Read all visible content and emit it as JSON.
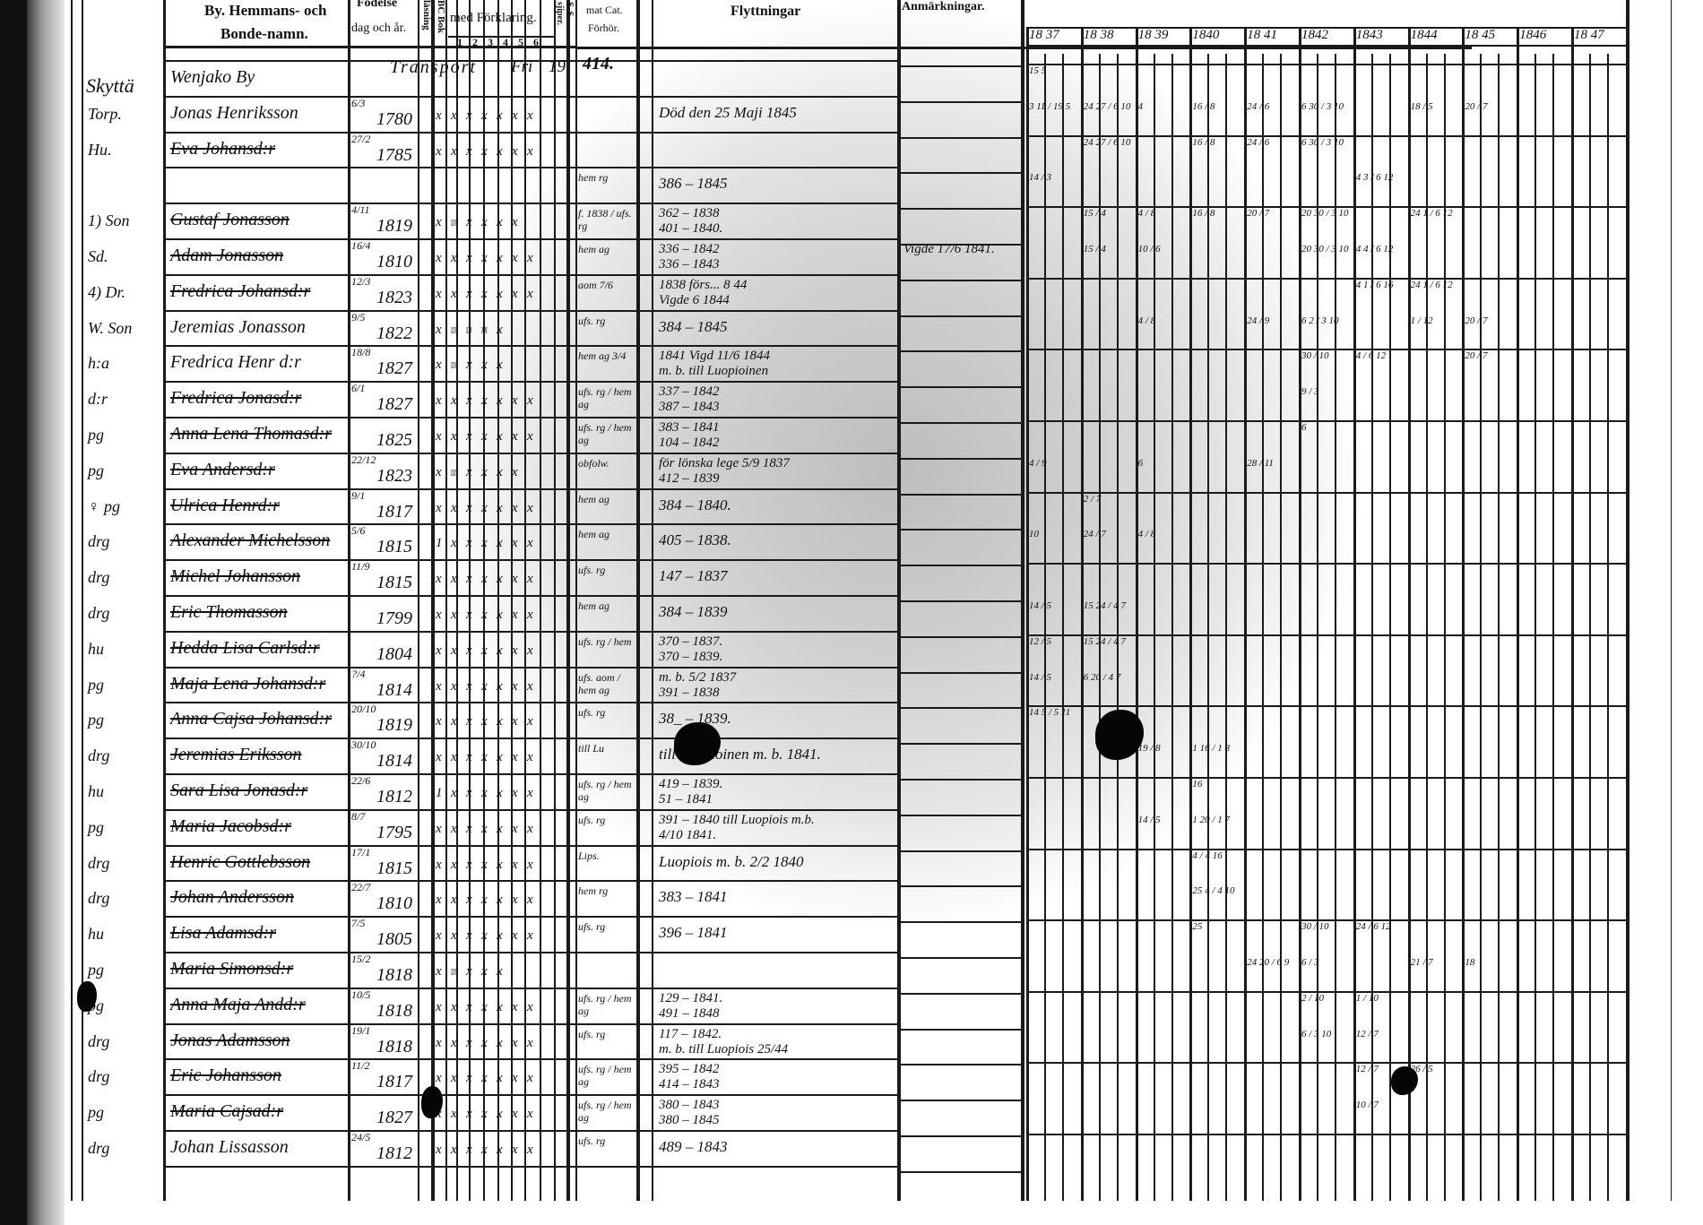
{
  "header": {
    "name_col": [
      "By. Hemmans- och",
      "Bonde-namn."
    ],
    "birth_col": [
      "Födelse",
      "dag och år."
    ],
    "abc_col": [
      "BC Bok",
      "läsning"
    ],
    "catechism_col": "med Förklaring.",
    "catechism_parts": [
      "1",
      "2",
      "3",
      "4",
      "5",
      "6"
    ],
    "ss_col": [
      "S. S.",
      "sjiper."
    ],
    "cat_col": [
      "mat Cat.",
      "Förhör."
    ],
    "moves_col": "Flyttningar",
    "remarks_col": "Anmärkningar.",
    "years": [
      "18 37",
      "18 38",
      "18 39",
      "1840",
      "18 41",
      "1842",
      "1843",
      "1844",
      "18 45",
      "1846",
      "18 47"
    ]
  },
  "transport": {
    "label": "Transport",
    "col_a": "Fri",
    "col_b": "19",
    "total": "414."
  },
  "margin_note": "Skyttä",
  "rows": [
    {
      "role": "",
      "name": "Wenjako By",
      "struck": false,
      "day": "",
      "year": "",
      "marks": "",
      "cat": "",
      "notes": [],
      "remarks": "",
      "ym": [
        {
          "y": 1837,
          "t": "15 5"
        }
      ]
    },
    {
      "role": "Torp.",
      "name": "Jonas Henriksson",
      "struck": false,
      "day": "6/3",
      "year": "1780",
      "marks": "x x x x x x x",
      "cat": "",
      "notes": [
        "Död den 25 Maji 1845"
      ],
      "remarks": "",
      "ym": [
        {
          "y": 1837,
          "t": "3 11 / 19 5"
        },
        {
          "y": 1838,
          "t": "24 27 / 6 10"
        },
        {
          "y": 1839,
          "t": "4"
        },
        {
          "y": 1840,
          "t": "16 / 8"
        },
        {
          "y": 1841,
          "t": "24 / 6"
        },
        {
          "y": 1842,
          "t": "6 30 / 3 10"
        },
        {
          "y": 1844,
          "t": "18 / 5"
        },
        {
          "y": 1845,
          "t": "20 / 7"
        }
      ]
    },
    {
      "role": "Hu.",
      "name": "Eva Johansd:r",
      "struck": true,
      "day": "27/2",
      "year": "1785",
      "marks": "x x x x x x x",
      "cat": "",
      "notes": [],
      "remarks": "",
      "ym": [
        {
          "y": 1838,
          "t": "24 27 / 6 10"
        },
        {
          "y": 1840,
          "t": "16 / 8"
        },
        {
          "y": 1841,
          "t": "24 / 6"
        },
        {
          "y": 1842,
          "t": "6 30 / 3 10"
        }
      ]
    },
    {
      "role": "",
      "name": "",
      "struck": false,
      "day": "",
      "year": "",
      "marks": "",
      "cat": "hem rg",
      "notes": [
        "386 – 1845"
      ],
      "remarks": "",
      "ym": [
        {
          "y": 1837,
          "t": "14 / 3"
        },
        {
          "y": 1843,
          "t": "4 3 / 6 12"
        }
      ]
    },
    {
      "role": "1) Son",
      "name": "Gustaf Jonasson",
      "struck": true,
      "day": "4/11",
      "year": "1819",
      "marks": "x xxxx x x x x",
      "cat": "f. 1838 / ufs. rg",
      "notes": [
        "362 – 1838",
        "401 – 1840."
      ],
      "remarks": "",
      "ym": [
        {
          "y": 1838,
          "t": "15 / 4"
        },
        {
          "y": 1839,
          "t": "4 / 8"
        },
        {
          "y": 1840,
          "t": "16 / 8"
        },
        {
          "y": 1841,
          "t": "20 / 7"
        },
        {
          "y": 1842,
          "t": "20 30 / 3 10"
        },
        {
          "y": 1844,
          "t": "24 1 / 6 12"
        }
      ]
    },
    {
      "role": "Sd.",
      "name": "Adam Jonasson",
      "struck": true,
      "day": "16/4",
      "year": "1810",
      "marks": "x x x x x x x",
      "cat": "hem ag",
      "notes": [
        "336 – 1842",
        "336 – 1843"
      ],
      "remarks": "Vigde 17/6 1841.",
      "ym": [
        {
          "y": 1838,
          "t": "15 / 4"
        },
        {
          "y": 1839,
          "t": "10 / 6"
        },
        {
          "y": 1842,
          "t": "20 30 / 3 10"
        },
        {
          "y": 1843,
          "t": "4 4 / 6 12"
        }
      ]
    },
    {
      "role": "4) Dr.",
      "name": "Fredrica Johansd:r",
      "struck": true,
      "day": "12/3",
      "year": "1823",
      "marks": "x x x x x x x",
      "cat": "aom 7/6",
      "notes": [
        "1838 förs... 8 44",
        "Vigde 6 1844"
      ],
      "remarks": "",
      "ym": [
        {
          "y": 1843,
          "t": "4 1 / 6 16"
        },
        {
          "y": 1844,
          "t": "24 1 / 6 12"
        }
      ]
    },
    {
      "role": "W. Son",
      "name": "Jeremias Jonasson",
      "struck": false,
      "day": "9/5",
      "year": "1822",
      "marks": "x xxxx xxx xx x",
      "cat": "ufs. rg",
      "notes": [
        "384 – 1845"
      ],
      "remarks": "",
      "ym": [
        {
          "y": 1839,
          "t": "4 / 8"
        },
        {
          "y": 1841,
          "t": "24 / 9"
        },
        {
          "y": 1842,
          "t": "6 2 / 3 10"
        },
        {
          "y": 1844,
          "t": "1 / 12"
        },
        {
          "y": 1845,
          "t": "20 / 7"
        }
      ]
    },
    {
      "role": "h:a",
      "name": "Fredrica Henr d:r",
      "struck": false,
      "day": "18/8",
      "year": "1827",
      "marks": "x xxxx x x x",
      "cat": "hem ag 3/4",
      "notes": [
        "1841 Vigd 11/6 1844",
        "m. b. till Luopioinen"
      ],
      "remarks": "",
      "ym": [
        {
          "y": 1842,
          "t": "30 / 10"
        },
        {
          "y": 1843,
          "t": "4 / 6 12"
        },
        {
          "y": 1845,
          "t": "20 / 7"
        }
      ]
    },
    {
      "role": "d:r",
      "name": "Fredrica Jonasd:r",
      "struck": true,
      "day": "6/1",
      "year": "1827",
      "marks": "x x x x x x x",
      "cat": "ufs. rg / hem ag",
      "notes": [
        "337 – 1842",
        "387 – 1843"
      ],
      "remarks": "",
      "ym": [
        {
          "y": 1842,
          "t": "9 / 3"
        }
      ]
    },
    {
      "role": "pg",
      "name": "Anna Lena Thomasd:r",
      "struck": true,
      "day": "",
      "year": "1825",
      "marks": "x x x x x x x",
      "cat": "ufs. rg / hem ag",
      "notes": [
        "383 – 1841",
        "104 – 1842"
      ],
      "remarks": "",
      "ym": [
        {
          "y": 1842,
          "t": "6"
        }
      ]
    },
    {
      "role": "pg",
      "name": "Eva Andersd:r",
      "struck": true,
      "day": "22/12",
      "year": "1823",
      "marks": "x xxxxx x x x x",
      "cat": "obfolw.",
      "notes": [
        "för lönska lege 5/9 1837",
        "412 – 1839"
      ],
      "remarks": "",
      "ym": [
        {
          "y": 1837,
          "t": "4 / 9"
        },
        {
          "y": 1839,
          "t": "6"
        },
        {
          "y": 1841,
          "t": "28 / 11"
        }
      ]
    },
    {
      "role": "♀ pg",
      "name": "Ulrica Henrd:r",
      "struck": true,
      "day": "9/1",
      "year": "1817",
      "marks": "x x x x x x x",
      "cat": "hem ag",
      "notes": [
        "384 – 1840."
      ],
      "remarks": "",
      "ym": [
        {
          "y": 1838,
          "t": "2 / 7"
        }
      ]
    },
    {
      "role": "drg",
      "name": "Alexander Michelsson",
      "struck": true,
      "day": "5/6",
      "year": "1815",
      "marks": "1 x x x x x x",
      "cat": "hem ag",
      "notes": [
        "405 – 1838."
      ],
      "remarks": "",
      "ym": [
        {
          "y": 1837,
          "t": "10"
        },
        {
          "y": 1838,
          "t": "24 / 7"
        },
        {
          "y": 1839,
          "t": "4 / 8"
        }
      ]
    },
    {
      "role": "drg",
      "name": "Michel Johansson",
      "struck": true,
      "day": "11/9",
      "year": "1815",
      "marks": "x x x x x x x",
      "cat": "ufs. rg",
      "notes": [
        "147 – 1837"
      ],
      "remarks": "",
      "ym": []
    },
    {
      "role": "drg",
      "name": "Eric Thomasson",
      "struck": true,
      "day": "",
      "year": "1799",
      "marks": "x x x x x x x",
      "cat": "hem ag",
      "notes": [
        "384 – 1839"
      ],
      "remarks": "",
      "ym": [
        {
          "y": 1837,
          "t": "14 / 5"
        },
        {
          "y": 1838,
          "t": "15 24 / 4 7"
        }
      ]
    },
    {
      "role": "hu",
      "name": "Hedda Lisa Carlsd:r",
      "struck": true,
      "day": "",
      "year": "1804",
      "marks": "x x x x x x x",
      "cat": "ufs. rg / hem",
      "notes": [
        "370 – 1837.",
        "370 – 1839."
      ],
      "remarks": "",
      "ym": [
        {
          "y": 1837,
          "t": "12 / 5"
        },
        {
          "y": 1838,
          "t": "15 24 / 4 7"
        }
      ]
    },
    {
      "role": "pg",
      "name": "Maja Lena Johansd:r",
      "struck": true,
      "day": "?/4",
      "year": "1814",
      "marks": "x x x x x x x",
      "cat": "ufs. aom / hem ag",
      "notes": [
        "m. b. 5/2 1837",
        "391 – 1838"
      ],
      "remarks": "",
      "ym": [
        {
          "y": 1837,
          "t": "14 / 5"
        },
        {
          "y": 1838,
          "t": "6 20 / 4 7"
        }
      ]
    },
    {
      "role": "pg",
      "name": "Anna Cajsa Johansd:r",
      "struck": true,
      "day": "20/10",
      "year": "1819",
      "marks": "x x x x x x x",
      "cat": "ufs. rg",
      "notes": [
        "38_ – 1839."
      ],
      "remarks": "",
      "ym": [
        {
          "y": 1837,
          "t": "14 5 / 5 11"
        }
      ]
    },
    {
      "role": "drg",
      "name": "Jeremias Eriksson",
      "struck": true,
      "day": "30/10",
      "year": "1814",
      "marks": "x x x x x x x",
      "cat": "till Lu",
      "notes": [
        "till Luopioinen m. b. 1841."
      ],
      "remarks": "",
      "ym": [
        {
          "y": 1839,
          "t": "19 / 8"
        },
        {
          "y": 1840,
          "t": "1 16 / 1 8"
        }
      ]
    },
    {
      "role": "hu",
      "name": "Sara Lisa Jonasd:r",
      "struck": true,
      "day": "22/6",
      "year": "1812",
      "marks": "1 x x x x x x",
      "cat": "ufs. rg / hem ag",
      "notes": [
        "419 – 1839.",
        "51 – 1841"
      ],
      "remarks": "",
      "ym": [
        {
          "y": 1840,
          "t": "16"
        }
      ]
    },
    {
      "role": "pg",
      "name": "Maria Jacobsd:r",
      "struck": true,
      "day": "8/7",
      "year": "1795",
      "marks": "x x x x x x x",
      "cat": "ufs. rg",
      "notes": [
        "391 – 1840 till Luopiois m.b.",
        "4/10 1841."
      ],
      "remarks": "",
      "ym": [
        {
          "y": 1839,
          "t": "14 / 5"
        },
        {
          "y": 1840,
          "t": "1 20 / 1 7"
        }
      ]
    },
    {
      "role": "drg",
      "name": "Henric Gottlebsson",
      "struck": true,
      "day": "17/1",
      "year": "1815",
      "marks": "x x x x x x x",
      "cat": "Lips.",
      "notes": [
        "Luopiois m. b. 2/2 1840"
      ],
      "remarks": "",
      "ym": [
        {
          "y": 1840,
          "t": "4 / 4 16"
        }
      ]
    },
    {
      "role": "drg",
      "name": "Johan Andersson",
      "struck": true,
      "day": "22/7",
      "year": "1810",
      "marks": "x x x x x x x",
      "cat": "hem rg",
      "notes": [
        "383 – 1841"
      ],
      "remarks": "",
      "ym": [
        {
          "y": 1840,
          "t": "25 4 / 4 10"
        }
      ]
    },
    {
      "role": "hu",
      "name": "Lisa Adamsd:r",
      "struck": true,
      "day": "7/5",
      "year": "1805",
      "marks": "x x x x x x x",
      "cat": "ufs. rg",
      "notes": [
        "396 – 1841"
      ],
      "remarks": "",
      "ym": [
        {
          "y": 1840,
          "t": "25"
        },
        {
          "y": 1842,
          "t": "30 / 10"
        },
        {
          "y": 1843,
          "t": "24 / 6 12"
        }
      ]
    },
    {
      "role": "pg",
      "name": "Maria Simonsd:r",
      "struck": true,
      "day": "15/2",
      "year": "1818",
      "marks": "x xxxx x x x",
      "cat": "",
      "notes": [],
      "remarks": "",
      "ym": [
        {
          "y": 1841,
          "t": "24 20 / 6 9"
        },
        {
          "y": 1842,
          "t": "6 / 3"
        },
        {
          "y": 1844,
          "t": "21 / 7"
        },
        {
          "y": 1845,
          "t": "18"
        }
      ]
    },
    {
      "role": "pg",
      "name": "Anna Maja Andd:r",
      "struck": true,
      "day": "10/5",
      "year": "1818",
      "marks": "x x x x x x x",
      "cat": "ufs. rg / hem ag",
      "notes": [
        "129 – 1841.",
        "491 – 1848"
      ],
      "remarks": "",
      "ym": [
        {
          "y": 1842,
          "t": "2 / 10"
        },
        {
          "y": 1843,
          "t": "1 / 10"
        }
      ]
    },
    {
      "role": "drg",
      "name": "Jonas Adamsson",
      "struck": true,
      "day": "19/1",
      "year": "1818",
      "marks": "x x x x x x x",
      "cat": "ufs. rg",
      "notes": [
        "117 – 1842.",
        "m. b. till Luopiois 25/44"
      ],
      "remarks": "",
      "ym": [
        {
          "y": 1842,
          "t": "6 / 3 10"
        },
        {
          "y": 1843,
          "t": "12 / 7"
        }
      ]
    },
    {
      "role": "drg",
      "name": "Eric Johansson",
      "struck": true,
      "day": "11/2",
      "year": "1817",
      "marks": "x x x x x x x",
      "cat": "ufs. rg / hem ag",
      "notes": [
        "395 – 1842",
        "414 – 1843"
      ],
      "remarks": "",
      "ym": [
        {
          "y": 1843,
          "t": "12 / 7"
        },
        {
          "y": 1844,
          "t": "26 / 5"
        }
      ]
    },
    {
      "role": "pg",
      "name": "Maria Cajsad:r",
      "struck": true,
      "day": "",
      "year": "1827",
      "marks": "x x x x x x x",
      "cat": "ufs. rg / hem ag",
      "notes": [
        "380 – 1843",
        "380 – 1845"
      ],
      "remarks": "",
      "ym": [
        {
          "y": 1843,
          "t": "10 / 7"
        }
      ]
    },
    {
      "role": "drg",
      "name": "Johan Lissasson",
      "struck": false,
      "day": "24/5",
      "year": "1812",
      "marks": "x x x x x x x",
      "cat": "ufs. rg",
      "notes": [
        "489 – 1843"
      ],
      "remarks": "",
      "ym": []
    }
  ],
  "colors": {
    "ink": "#111111",
    "paper": "#ffffff",
    "shade": "#c4c4c4"
  }
}
